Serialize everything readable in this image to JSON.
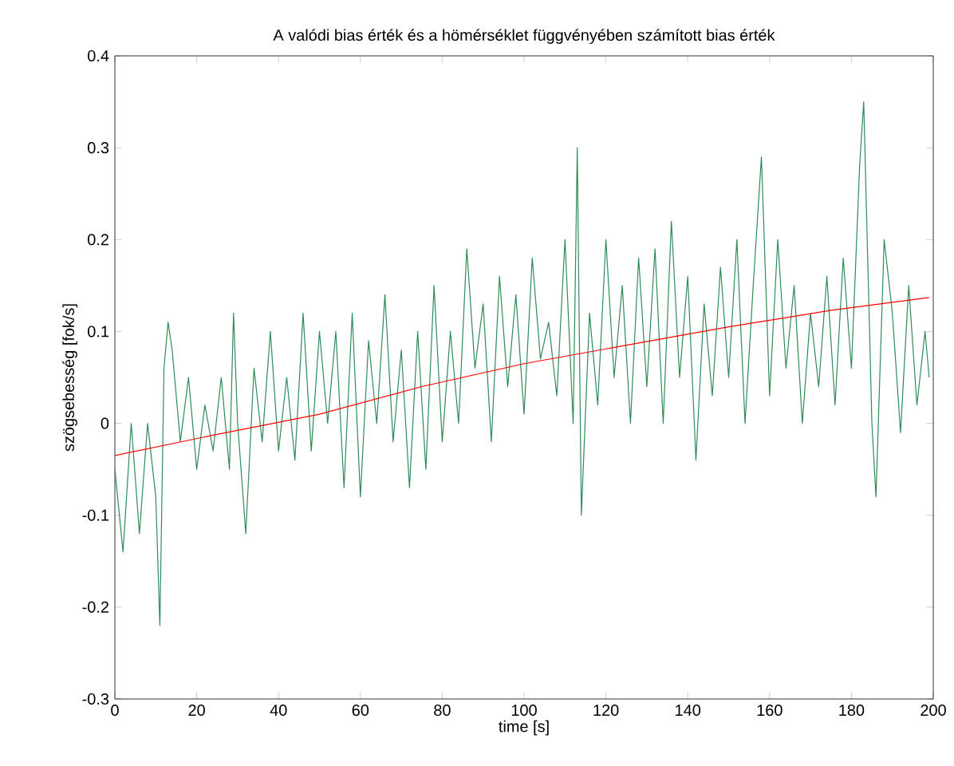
{
  "chart_data": {
    "type": "line",
    "title": "A valódi bias érték és a hömérséklet függvényében számított bias érték",
    "xlabel": "time [s]",
    "ylabel": "szögsebesség [fok/s]",
    "xlim": [
      0,
      200
    ],
    "ylim": [
      -0.3,
      0.4
    ],
    "xticks": [
      0,
      20,
      40,
      60,
      80,
      100,
      120,
      140,
      160,
      180,
      200
    ],
    "yticks": [
      -0.3,
      -0.2,
      -0.1,
      0,
      0.1,
      0.2,
      0.3,
      0.4
    ],
    "grid": false,
    "marker": "none",
    "line_style": "solid",
    "series": [
      {
        "color": "#2e8b57",
        "x": [
          0,
          2,
          4,
          6,
          8,
          10,
          11,
          12,
          13,
          14,
          16,
          18,
          20,
          22,
          24,
          26,
          28,
          29,
          30,
          32,
          34,
          36,
          38,
          40,
          42,
          44,
          46,
          48,
          50,
          52,
          54,
          56,
          58,
          60,
          62,
          64,
          66,
          68,
          70,
          72,
          74,
          76,
          78,
          80,
          82,
          84,
          86,
          88,
          90,
          92,
          94,
          96,
          98,
          100,
          102,
          104,
          106,
          108,
          110,
          112,
          113,
          114,
          116,
          118,
          120,
          122,
          124,
          126,
          128,
          130,
          132,
          134,
          136,
          138,
          140,
          142,
          144,
          146,
          148,
          150,
          152,
          154,
          156,
          158,
          160,
          162,
          164,
          166,
          168,
          170,
          172,
          174,
          176,
          178,
          180,
          182,
          183,
          185,
          186,
          188,
          190,
          192,
          194,
          196,
          198,
          199
        ],
        "values": [
          -0.05,
          -0.14,
          0.0,
          -0.12,
          0.0,
          -0.08,
          -0.22,
          0.06,
          0.11,
          0.08,
          -0.02,
          0.05,
          -0.05,
          0.02,
          -0.03,
          0.05,
          -0.05,
          0.12,
          0.0,
          -0.12,
          0.06,
          -0.02,
          0.1,
          -0.03,
          0.05,
          -0.04,
          0.12,
          -0.03,
          0.1,
          0.0,
          0.1,
          -0.07,
          0.12,
          -0.08,
          0.09,
          0.0,
          0.14,
          -0.02,
          0.08,
          -0.07,
          0.1,
          -0.05,
          0.15,
          -0.02,
          0.1,
          0.0,
          0.19,
          0.06,
          0.13,
          -0.02,
          0.16,
          0.04,
          0.14,
          0.01,
          0.18,
          0.07,
          0.11,
          0.03,
          0.2,
          0.0,
          0.3,
          -0.1,
          0.12,
          0.02,
          0.2,
          0.05,
          0.15,
          0.0,
          0.18,
          0.04,
          0.19,
          0.0,
          0.22,
          0.05,
          0.16,
          -0.04,
          0.13,
          0.03,
          0.17,
          0.05,
          0.2,
          0.0,
          0.15,
          0.29,
          0.03,
          0.2,
          0.06,
          0.15,
          0.0,
          0.12,
          0.04,
          0.16,
          0.02,
          0.18,
          0.06,
          0.28,
          0.35,
          0.0,
          -0.08,
          0.2,
          0.12,
          -0.01,
          0.15,
          0.02,
          0.1,
          0.05
        ]
      },
      {
        "color": "#ff0000",
        "x": [
          0,
          25,
          50,
          75,
          100,
          125,
          150,
          175,
          199
        ],
        "values": [
          -0.035,
          -0.012,
          0.01,
          0.04,
          0.065,
          0.085,
          0.105,
          0.123,
          0.137
        ]
      }
    ]
  }
}
